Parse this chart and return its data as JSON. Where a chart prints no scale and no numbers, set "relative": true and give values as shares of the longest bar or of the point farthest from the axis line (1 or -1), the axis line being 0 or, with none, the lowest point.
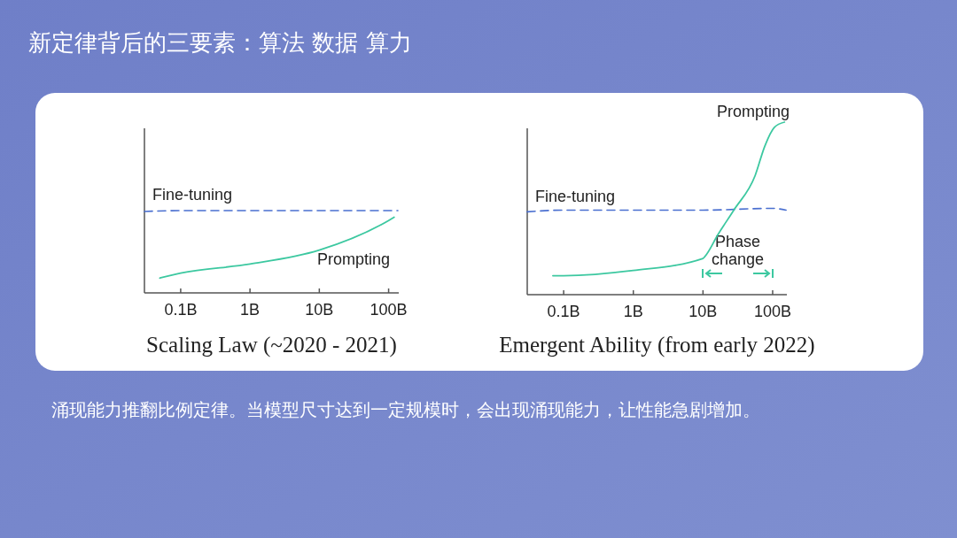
{
  "chart_data": [
    {
      "type": "other",
      "title": "新定律背后的三要素：算法 数据 算力",
      "annotations": [
        "涌现能力推翻比例定律。当模型尺寸达到一定规模时，会出现涌现能力，让性能急剧增加。"
      ]
    },
    {
      "type": "line",
      "title": "Scaling Law (~2020 - 2021)",
      "relative": true,
      "log": "x",
      "tick_labels": "x",
      "xlim": [
        0.03,
        140
      ],
      "xticks": [
        {
          "value": 0.1,
          "label": "0.1B"
        },
        {
          "value": 1,
          "label": "1B"
        },
        {
          "value": 10,
          "label": "10B"
        },
        {
          "value": 100,
          "label": "100B"
        }
      ],
      "series": [
        {
          "name": "Fine-tuning",
          "color": "#4a6fd0",
          "line_style": "dashed",
          "x": [
            0.03,
            0.1,
            1,
            10,
            100,
            136
          ],
          "values": [
            0.99,
            1,
            1,
            1,
            1,
            1
          ]
        },
        {
          "name": "Prompting",
          "color": "#3cc8a0",
          "line_style": "solid",
          "x": [
            0.05,
            0.1,
            1,
            10,
            100,
            120
          ],
          "values": [
            0.18,
            0.24,
            0.35,
            0.52,
            0.88,
            0.92
          ]
        }
      ]
    },
    {
      "type": "line",
      "title": "Emergent Ability (from early 2022)",
      "relative": true,
      "log": "x",
      "tick_labels": "x",
      "xlim": [
        0.03,
        160
      ],
      "xticks": [
        {
          "value": 0.1,
          "label": "0.1B"
        },
        {
          "value": 1,
          "label": "1B"
        },
        {
          "value": 10,
          "label": "10B"
        },
        {
          "value": 100,
          "label": "100B"
        }
      ],
      "annotations": [
        "Phase change"
      ],
      "series": [
        {
          "name": "Fine-tuning",
          "color": "#4a6fd0",
          "line_style": "dashed",
          "x": [
            0.03,
            0.1,
            1,
            10,
            100,
            156
          ],
          "values": [
            0.48,
            0.49,
            0.49,
            0.49,
            0.5,
            0.49
          ]
        },
        {
          "name": "Prompting",
          "color": "#3cc8a0",
          "line_style": "solid",
          "x": [
            0.07,
            0.1,
            1,
            10,
            10.6,
            16.5,
            27.7,
            56,
            77,
            106,
            148
          ],
          "values": [
            0.11,
            0.11,
            0.14,
            0.21,
            0.22,
            0.35,
            0.49,
            0.69,
            0.86,
            0.97,
            1
          ]
        }
      ]
    }
  ]
}
